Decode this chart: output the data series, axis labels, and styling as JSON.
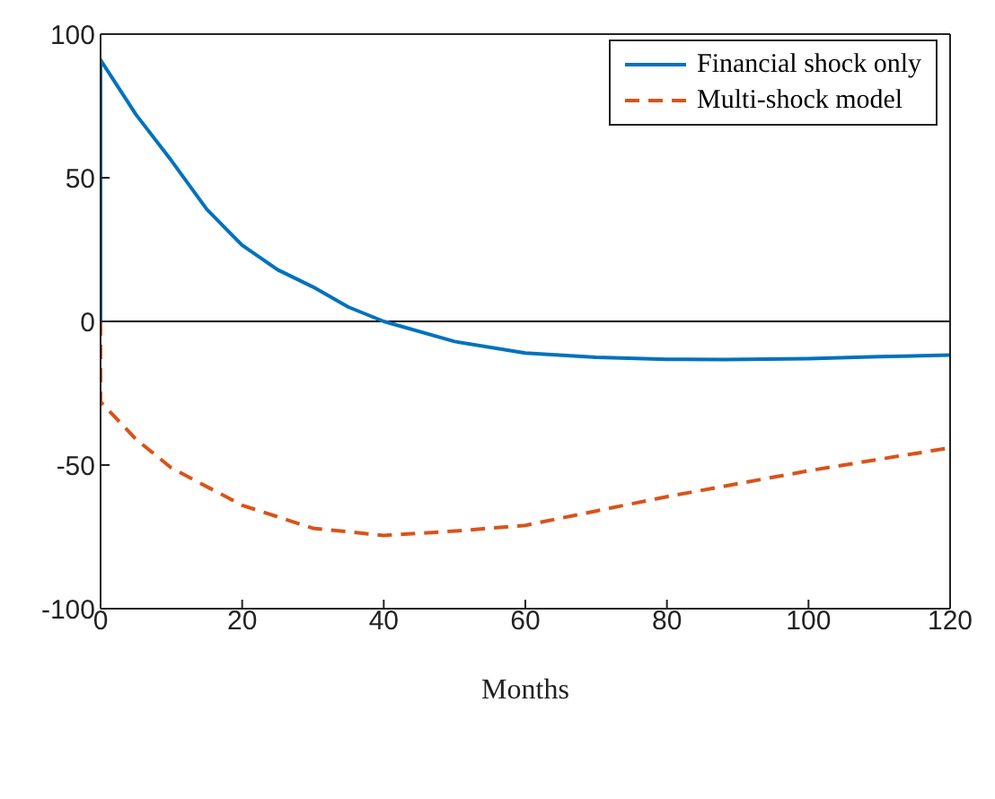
{
  "chart_data": {
    "type": "line",
    "xlabel": "Months",
    "xlim": [
      0,
      120
    ],
    "xticks": [
      0,
      20,
      40,
      60,
      80,
      100,
      120
    ],
    "ylim": [
      -100,
      100
    ],
    "yticks": [
      -100,
      -50,
      0,
      50,
      100
    ],
    "grid": false,
    "legend": "top right",
    "marker": "none",
    "ref_lines": [
      {
        "axis": "y",
        "value": 0,
        "color": "#000000"
      }
    ],
    "series": [
      {
        "name": "Financial shock only",
        "color": "#0072bd",
        "line_style": "solid",
        "x": [
          0,
          0,
          5,
          10,
          15,
          20,
          25,
          30,
          35,
          40,
          50,
          60,
          70,
          80,
          88,
          100,
          110,
          120
        ],
        "values": [
          0,
          91,
          72,
          56,
          39,
          26.5,
          18,
          12,
          5,
          0,
          -7,
          -11,
          -12.5,
          -13.2,
          -13.3,
          -13,
          -12.3,
          -11.7
        ]
      },
      {
        "name": "Multi-shock model",
        "color": "#d95319",
        "line_style": "dashed",
        "x": [
          0,
          0,
          5,
          10,
          20,
          30,
          40,
          50,
          60,
          70,
          80,
          90,
          100,
          110,
          120
        ],
        "values": [
          0,
          -28,
          -41,
          -51,
          -64,
          -72,
          -74.5,
          -73,
          -71,
          -66,
          -61,
          -56.5,
          -52,
          -48,
          -44
        ]
      }
    ]
  }
}
